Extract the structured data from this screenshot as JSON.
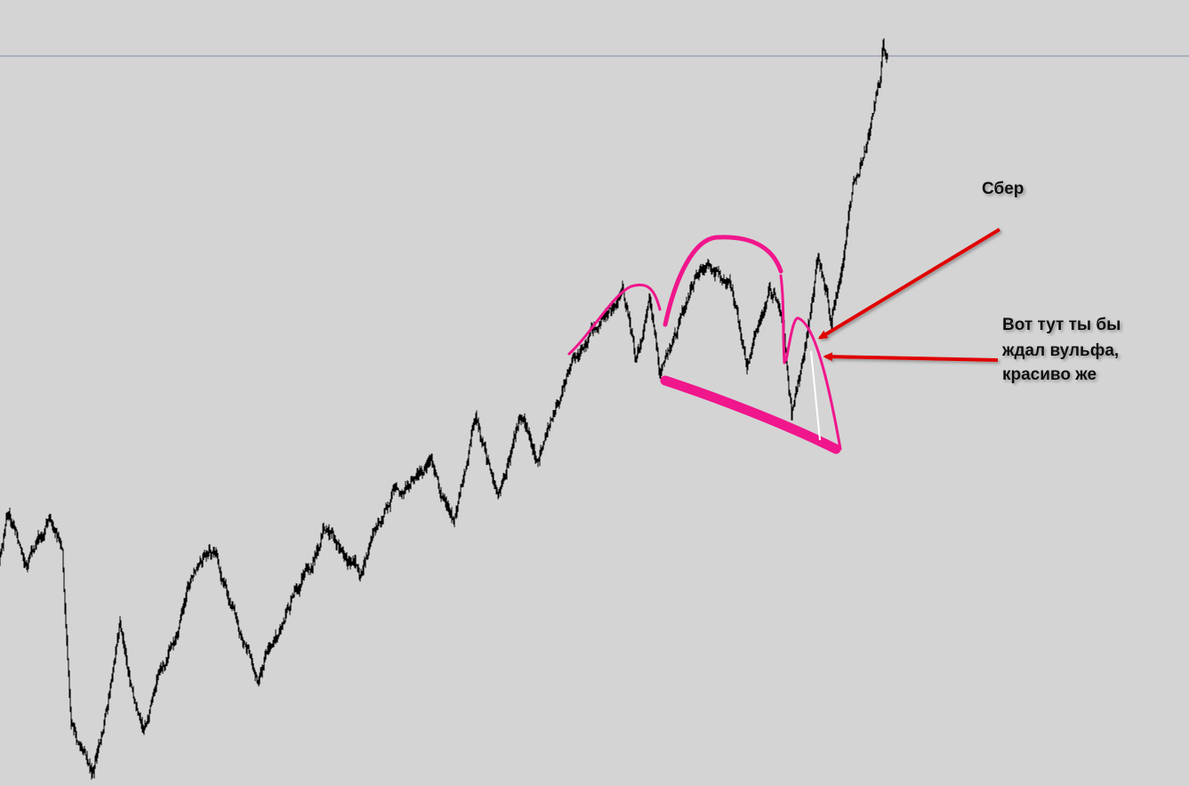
{
  "annotations": {
    "title": "Сбер",
    "note_lines": [
      "Вот тут ты бы",
      "ждал вульфа,",
      "красиво же"
    ]
  }
}
